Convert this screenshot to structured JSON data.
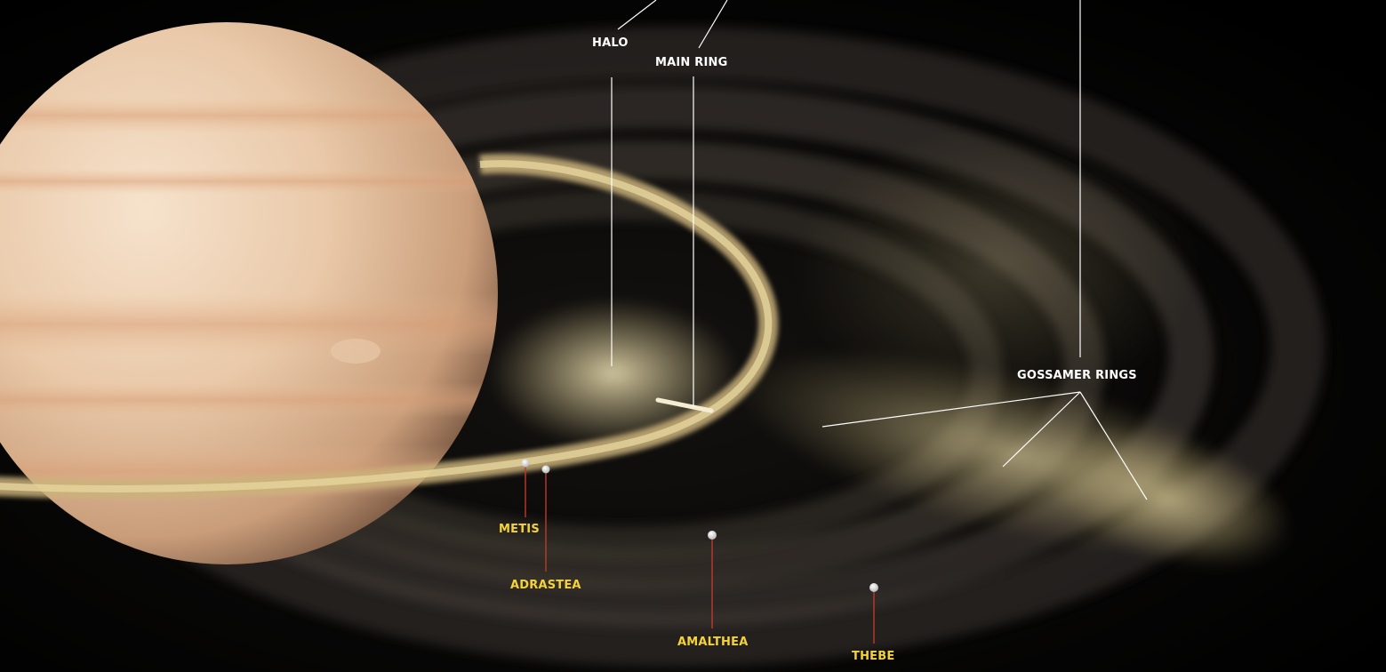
{
  "labels": {
    "halo": "HALO",
    "main_ring": "MAIN RING",
    "gossamer_rings": "GOSSAMER RINGS"
  },
  "moons": {
    "metis": "METIS",
    "adrastea": "ADRASTEA",
    "amalthea": "AMALTHEA",
    "thebe": "THEBE"
  },
  "colors": {
    "background": "#000000",
    "ring_label": "#ffffff",
    "moon_label": "#f3d23a",
    "moon_leader": "#c0392b",
    "ring_leader": "#ffffff",
    "planet_base": "#e6c6a6",
    "dust": "#d8c48a"
  }
}
